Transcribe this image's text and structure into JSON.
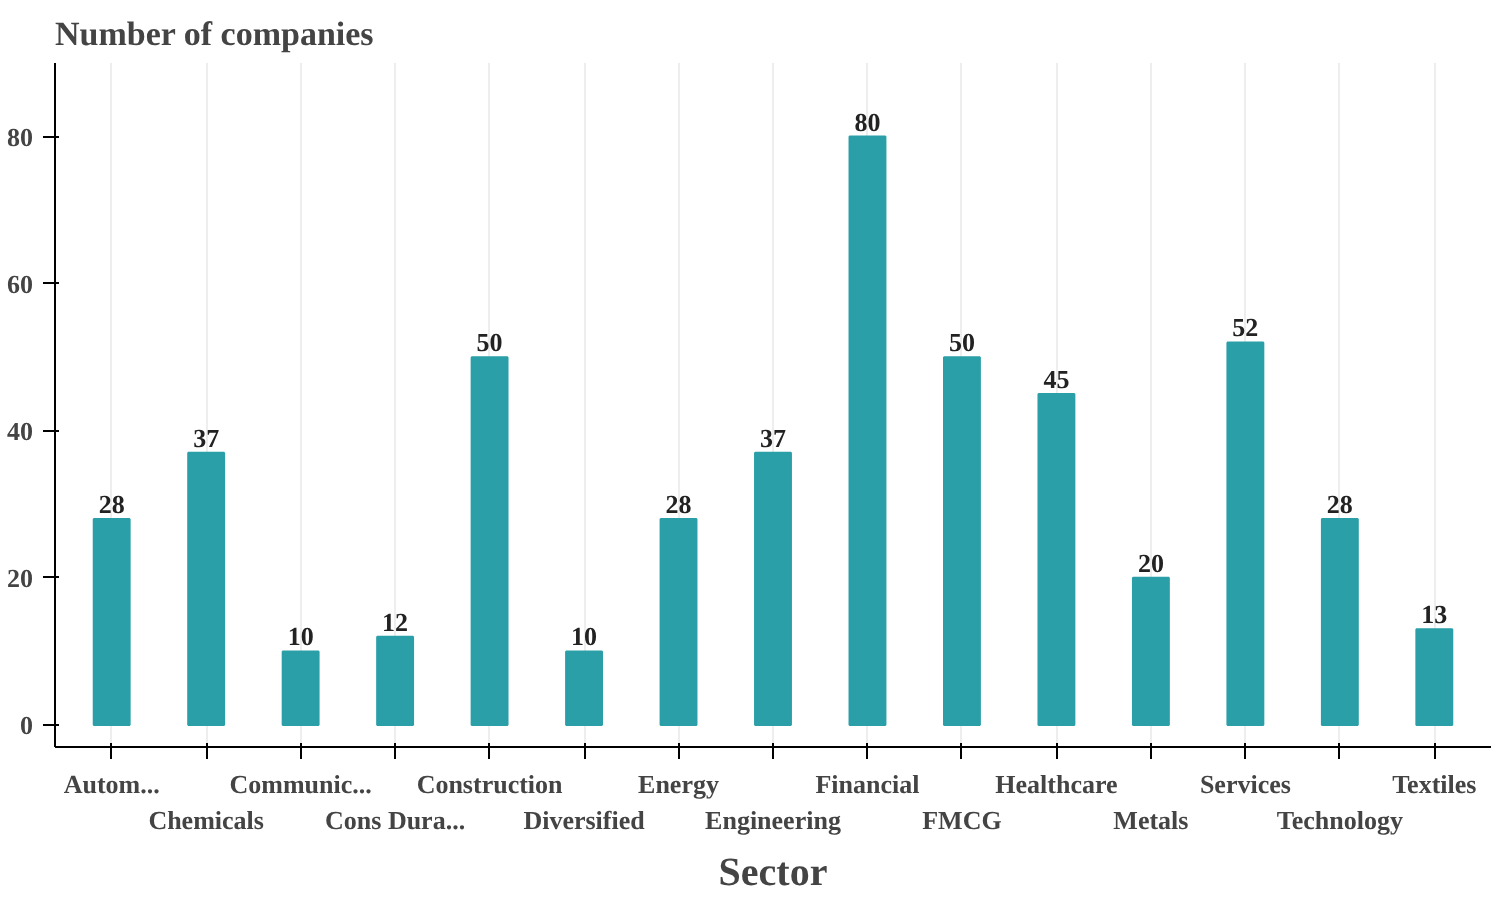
{
  "chart_data": {
    "type": "bar",
    "ylabel": "Number of companies",
    "xlabel": "Sector",
    "categories": [
      "Autom...",
      "Chemicals",
      "Communic...",
      "Cons Dura...",
      "Construction",
      "Diversified",
      "Energy",
      "Engineering",
      "Financial",
      "FMCG",
      "Healthcare",
      "Metals",
      "Services",
      "Technology",
      "Textiles"
    ],
    "values": [
      28,
      37,
      10,
      12,
      50,
      10,
      28,
      37,
      80,
      50,
      45,
      20,
      52,
      28,
      13
    ],
    "color": "#2a9fa8",
    "ylim": [
      -3,
      90
    ],
    "yticks": [
      0,
      20,
      40,
      60,
      80
    ],
    "grid": "x",
    "data_labels": true
  }
}
